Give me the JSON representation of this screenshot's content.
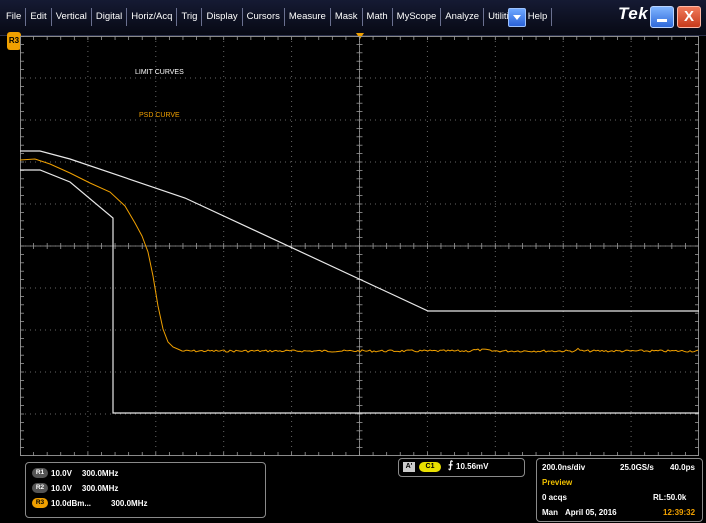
{
  "menubar": {
    "items": [
      "File",
      "Edit",
      "Vertical",
      "Digital",
      "Horiz/Acq",
      "Trig",
      "Display",
      "Cursors",
      "Measure",
      "Mask",
      "Math",
      "MyScope",
      "Analyze",
      "Utilities",
      "Help"
    ],
    "logo": "Tek",
    "close_glyph": "X"
  },
  "graticule": {
    "labels": {
      "limit_curves": "LIMIT CURVES",
      "psd_curve": "PSD CURVE"
    },
    "left_marker": "R3",
    "colors": {
      "limit": "#e8e8e8",
      "psd": "#f0a000",
      "grid": "#666666"
    }
  },
  "channels": [
    {
      "badge": "R1",
      "scale": "10.0V",
      "bw": "300.0MHz"
    },
    {
      "badge": "R2",
      "scale": "10.0V",
      "bw": "300.0MHz"
    },
    {
      "badge": "R3",
      "scale": "10.0dBm...",
      "bw": "300.0MHz"
    }
  ],
  "trigger": {
    "mode": "A'",
    "source": "C1",
    "slope": "⨍",
    "level": "10.56mV"
  },
  "acquisition": {
    "timebase": "200.0ns/div",
    "sample_rate": "25.0GS/s",
    "resolution": "40.0ps",
    "state": "Preview",
    "acqs": "0 acqs",
    "record_length": "RL:50.0k",
    "mode": "Man",
    "date": "April 05, 2016",
    "time": "12:39:32"
  }
}
